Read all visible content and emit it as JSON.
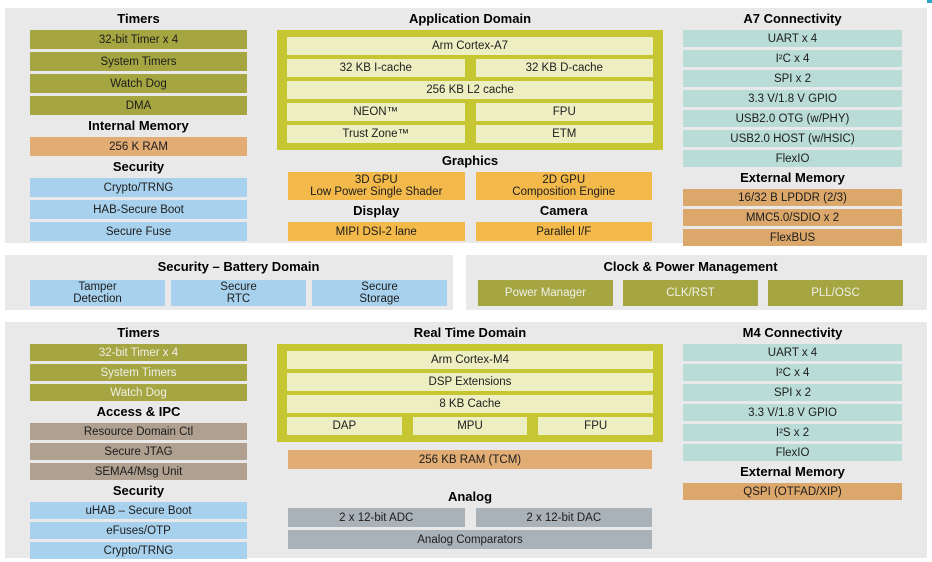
{
  "palette": {
    "panel": "#e9e9e9",
    "olive": "#a5a542",
    "box": "#c5c632",
    "pale": "#edeec1",
    "gold": "#f3b94a",
    "ram": "#e2ad75",
    "ext": "#dca76a",
    "blue": "#a8d1ed",
    "teal": "#b9dcd7",
    "taupe": "#b0a090",
    "gray": "#a9b2b9"
  },
  "top_left": [
    {
      "t": "hdr",
      "x": "Timers"
    },
    {
      "t": "blk",
      "c": "olive",
      "x": "32-bit Timer x 4"
    },
    {
      "t": "blk",
      "c": "olive",
      "x": "System Timers"
    },
    {
      "t": "blk",
      "c": "olive",
      "x": "Watch Dog"
    },
    {
      "t": "blk",
      "c": "olive",
      "x": "DMA"
    },
    {
      "t": "hdr",
      "x": "Internal Memory"
    },
    {
      "t": "blk",
      "c": "ram",
      "x": "256 K RAM"
    },
    {
      "t": "hdr",
      "x": "Security"
    },
    {
      "t": "blk",
      "c": "blue",
      "x": "Crypto/TRNG"
    },
    {
      "t": "blk",
      "c": "blue",
      "x": "HAB-Secure Boot"
    },
    {
      "t": "blk",
      "c": "blue",
      "x": "Secure Fuse"
    }
  ],
  "top_center": [
    {
      "t": "hdr",
      "x": "Application Domain"
    },
    {
      "t": "box",
      "rows": [
        {
          "t": "blk",
          "c": "pale",
          "x": "Arm Cortex-A7"
        },
        {
          "t": "row",
          "cells": [
            {
              "c": "pale",
              "x": "32 KB I-cache"
            },
            {
              "c": "pale",
              "x": "32 KB D-cache"
            }
          ]
        },
        {
          "t": "blk",
          "c": "pale",
          "x": "256 KB L2 cache"
        },
        {
          "t": "row",
          "cells": [
            {
              "c": "pale",
              "x": "NEON™"
            },
            {
              "c": "pale",
              "x": "FPU"
            }
          ]
        },
        {
          "t": "row",
          "cells": [
            {
              "c": "pale",
              "x": "Trust Zone™"
            },
            {
              "c": "pale",
              "x": "ETM"
            }
          ]
        }
      ]
    },
    {
      "t": "hdr",
      "x": "Graphics"
    },
    {
      "t": "row",
      "tall": true,
      "cells": [
        {
          "c": "gold",
          "x": "3D GPU\nLow Power Single Shader"
        },
        {
          "c": "gold",
          "x": "2D GPU\nComposition Engine"
        }
      ]
    },
    {
      "t": "hdrrow",
      "cells": [
        "Display",
        "Camera"
      ]
    },
    {
      "t": "row",
      "cells": [
        {
          "c": "gold",
          "x": "MIPI DSI-2 lane"
        },
        {
          "c": "gold",
          "x": "Parallel I/F"
        }
      ]
    }
  ],
  "top_right": [
    {
      "t": "hdr",
      "x": "A7 Connectivity"
    },
    {
      "t": "blk",
      "c": "teal",
      "x": "UART x 4"
    },
    {
      "t": "blk",
      "c": "teal",
      "x": "I²C x 4"
    },
    {
      "t": "blk",
      "c": "teal",
      "x": "SPI x 2"
    },
    {
      "t": "blk",
      "c": "teal",
      "x": "3.3 V/1.8 V GPIO"
    },
    {
      "t": "blk",
      "c": "teal",
      "x": "USB2.0 OTG (w/PHY)"
    },
    {
      "t": "blk",
      "c": "teal",
      "x": "USB2.0 HOST (w/HSIC)"
    },
    {
      "t": "blk",
      "c": "teal",
      "x": "FlexIO"
    },
    {
      "t": "hdr",
      "x": "External Memory"
    },
    {
      "t": "blk",
      "c": "ext",
      "x": "16/32 B LPDDR (2/3)"
    },
    {
      "t": "blk",
      "c": "ext",
      "x": "MMC5.0/SDIO x 2"
    },
    {
      "t": "blk",
      "c": "ext",
      "x": "FlexBUS"
    }
  ],
  "mid_left": [
    {
      "t": "hdr",
      "x": "Security – Battery Domain"
    },
    {
      "t": "row",
      "mid": true,
      "cells": [
        {
          "c": "blue",
          "x": "Tamper\nDetection"
        },
        {
          "c": "blue",
          "x": "Secure\nRTC"
        },
        {
          "c": "blue",
          "x": "Secure\nStorage"
        }
      ]
    }
  ],
  "mid_right": [
    {
      "t": "hdr",
      "x": "Clock & Power Management"
    },
    {
      "t": "row",
      "mid": true,
      "cells": [
        {
          "c": "olivew",
          "x": "Power Manager"
        },
        {
          "c": "olivew",
          "x": "CLK/RST"
        },
        {
          "c": "olivew",
          "x": "PLL/OSC"
        }
      ]
    }
  ],
  "bottom_left": [
    {
      "t": "hdr",
      "x": "Timers"
    },
    {
      "t": "blk",
      "c": "olivew",
      "x": "32-bit Timer x 4"
    },
    {
      "t": "blk",
      "c": "olivew",
      "x": "System Timers"
    },
    {
      "t": "blk",
      "c": "olivew",
      "x": "Watch Dog"
    },
    {
      "t": "hdr",
      "x": "Access & IPC"
    },
    {
      "t": "blk",
      "c": "taupe",
      "x": "Resource Domain Ctl"
    },
    {
      "t": "blk",
      "c": "taupe",
      "x": "Secure JTAG"
    },
    {
      "t": "blk",
      "c": "taupe",
      "x": "SEMA4/Msg Unit"
    },
    {
      "t": "hdr",
      "x": "Security"
    },
    {
      "t": "blk",
      "c": "blue",
      "x": "uHAB – Secure Boot"
    },
    {
      "t": "blk",
      "c": "blue",
      "x": "eFuses/OTP"
    },
    {
      "t": "blk",
      "c": "blue",
      "x": "Crypto/TRNG"
    }
  ],
  "bottom_center": [
    {
      "t": "hdr",
      "x": "Real Time Domain"
    },
    {
      "t": "box",
      "rows": [
        {
          "t": "blk",
          "c": "pale",
          "x": "Arm Cortex-M4"
        },
        {
          "t": "blk",
          "c": "pale",
          "x": "DSP Extensions"
        },
        {
          "t": "blk",
          "c": "pale",
          "x": "8 KB Cache"
        },
        {
          "t": "row",
          "cells": [
            {
              "c": "pale",
              "x": "DAP"
            },
            {
              "c": "pale",
              "x": "MPU"
            },
            {
              "c": "pale",
              "x": "FPU"
            }
          ]
        }
      ]
    },
    {
      "t": "gap",
      "h": 2
    },
    {
      "t": "blk",
      "c": "ram",
      "x": "256 KB RAM (TCM)"
    },
    {
      "t": "gap",
      "h": 14
    },
    {
      "t": "hdr",
      "x": "Analog"
    },
    {
      "t": "row",
      "cells": [
        {
          "c": "gray",
          "x": "2 x 12-bit ADC"
        },
        {
          "c": "gray",
          "x": "2 x 12-bit DAC"
        }
      ]
    },
    {
      "t": "blk",
      "c": "gray",
      "x": "Analog Comparators"
    }
  ],
  "bottom_right": [
    {
      "t": "hdr",
      "x": "M4 Connectivity"
    },
    {
      "t": "blk",
      "c": "teal",
      "x": "UART x 4"
    },
    {
      "t": "blk",
      "c": "teal",
      "x": "I²C x 4"
    },
    {
      "t": "blk",
      "c": "teal",
      "x": "SPI x 2"
    },
    {
      "t": "blk",
      "c": "teal",
      "x": "3.3 V/1.8 V GPIO"
    },
    {
      "t": "blk",
      "c": "teal",
      "x": "I²S x 2"
    },
    {
      "t": "blk",
      "c": "teal",
      "x": "FlexIO"
    },
    {
      "t": "hdr",
      "x": "External Memory"
    },
    {
      "t": "blk",
      "c": "ext",
      "x": "QSPI (OTFAD/XIP)"
    }
  ]
}
